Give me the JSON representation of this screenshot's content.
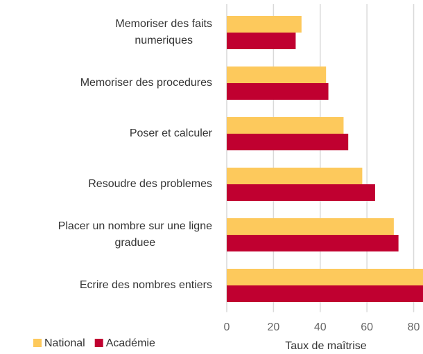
{
  "chart_data": {
    "type": "barh",
    "categories": [
      [
        "Memoriser des faits",
        "numeriques"
      ],
      [
        "Memoriser des procedures"
      ],
      [
        "Poser et calculer"
      ],
      [
        "Resoudre des problemes"
      ],
      [
        "Placer un nombre sur une ligne",
        "graduee"
      ],
      [
        "Ecrire des nombres entiers"
      ]
    ],
    "series": [
      {
        "name": "National",
        "color": "#fdc95c",
        "values": [
          32,
          42.5,
          50,
          58,
          71.5,
          85
        ]
      },
      {
        "name": "Académie",
        "color": "#c00030",
        "values": [
          29.5,
          43.5,
          52,
          63.5,
          73.5,
          86
        ]
      }
    ],
    "xlim": [
      0,
      84
    ],
    "xticks": [
      0,
      20,
      40,
      60,
      80
    ],
    "xlabel": "Taux de maîtrise",
    "grid": true,
    "legend": "bottom-left"
  }
}
